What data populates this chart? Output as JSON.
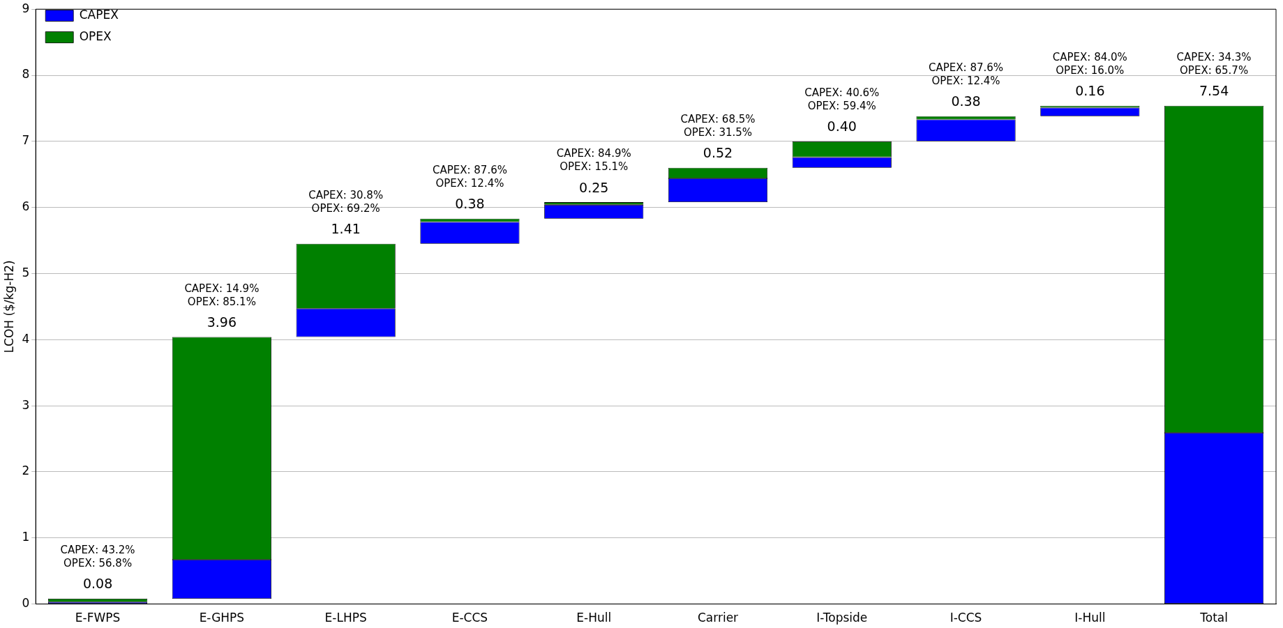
{
  "chart_data": {
    "type": "bar",
    "ylabel": "LCOH ($/kg-H2)",
    "categories": [
      "E-FWPS",
      "E-GHPS",
      "E-LHPS",
      "E-CCS",
      "E-Hull",
      "Carrier",
      "I-Topside",
      "I-CCS",
      "I-Hull",
      "Total"
    ],
    "series": [
      {
        "name": "CAPEX",
        "color": "#0000ff",
        "base": [
          0,
          0.08,
          4.04,
          5.45,
          5.83,
          6.08,
          6.6,
          7.0,
          7.38,
          0
        ],
        "values": [
          0.03,
          0.59,
          0.43,
          0.33,
          0.21,
          0.36,
          0.16,
          0.33,
          0.13,
          2.59
        ]
      },
      {
        "name": "OPEX",
        "color": "#008000",
        "base": [
          0.03,
          0.67,
          4.47,
          5.78,
          6.04,
          6.44,
          6.76,
          7.33,
          7.51,
          2.59
        ],
        "values": [
          0.05,
          3.37,
          0.98,
          0.05,
          0.04,
          0.16,
          0.24,
          0.05,
          0.03,
          4.95
        ]
      }
    ],
    "totals": [
      "0.08",
      "3.96",
      "1.41",
      "0.38",
      "0.25",
      "0.52",
      "0.40",
      "0.38",
      "0.16",
      "7.54"
    ],
    "annotations": [
      "CAPEX: 43.2%\nOPEX: 56.8%",
      "CAPEX: 14.9%\nOPEX: 85.1%",
      "CAPEX: 30.8%\nOPEX: 69.2%",
      "CAPEX: 87.6%\nOPEX: 12.4%",
      "CAPEX: 84.9%\nOPEX: 15.1%",
      "CAPEX: 68.5%\nOPEX: 31.5%",
      "CAPEX: 40.6%\nOPEX: 59.4%",
      "CAPEX: 87.6%\nOPEX: 12.4%",
      "CAPEX: 84.0%\nOPEX: 16.0%",
      "CAPEX: 34.3%\nOPEX: 65.7%"
    ],
    "ylim": [
      0,
      9
    ],
    "yticks": [
      0,
      1,
      2,
      3,
      4,
      5,
      6,
      7,
      8,
      9
    ],
    "grid": "y",
    "legend": "top left"
  }
}
